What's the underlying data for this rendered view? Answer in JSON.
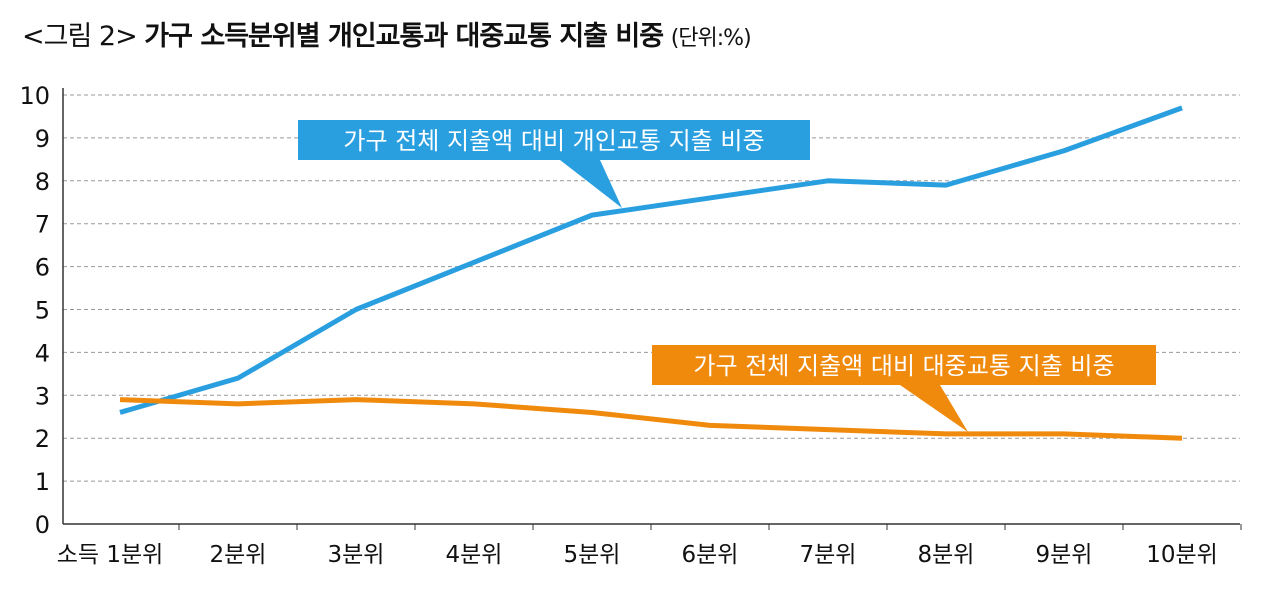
{
  "title": {
    "prefix": "<그림 2>",
    "main": "가구 소득분위별 개인교통과 대중교통 지출 비중",
    "unit": "(단위:%)"
  },
  "chart_data": {
    "type": "line",
    "categories": [
      "소득 1분위",
      "2분위",
      "3분위",
      "4분위",
      "5분위",
      "6분위",
      "7분위",
      "8분위",
      "9분위",
      "10분위"
    ],
    "ylim": [
      0,
      10
    ],
    "yticks": [
      0,
      1,
      2,
      3,
      4,
      5,
      6,
      7,
      8,
      9,
      10
    ],
    "grid": true,
    "series": [
      {
        "name": "가구 전체 지출액 대비 개인교통 지출 비중",
        "color": "#2a9fe0",
        "values": [
          2.6,
          3.4,
          5.0,
          6.1,
          7.2,
          7.6,
          8.0,
          7.9,
          8.7,
          9.7
        ]
      },
      {
        "name": "가구 전체 지출액 대비 대중교통 지출 비중",
        "color": "#f08a0c",
        "values": [
          2.9,
          2.8,
          2.9,
          2.8,
          2.6,
          2.3,
          2.2,
          2.1,
          2.1,
          2.0
        ]
      }
    ]
  }
}
